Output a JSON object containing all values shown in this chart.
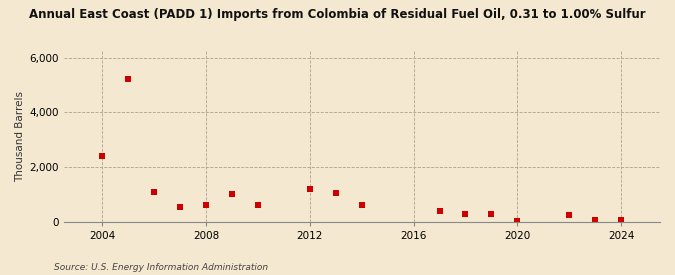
{
  "title": "Annual East Coast (PADD 1) Imports from Colombia of Residual Fuel Oil, 0.31 to 1.00% Sulfur",
  "ylabel": "Thousand Barrels",
  "source": "Source: U.S. Energy Information Administration",
  "background_color": "#f5e8d0",
  "marker_color": "#cc0000",
  "years": [
    2004,
    2005,
    2006,
    2007,
    2008,
    2009,
    2010,
    2012,
    2013,
    2014,
    2017,
    2018,
    2019,
    2020,
    2022,
    2023,
    2024
  ],
  "values": [
    2420,
    5200,
    1100,
    550,
    620,
    1000,
    620,
    1200,
    1050,
    620,
    400,
    300,
    265,
    12,
    230,
    70,
    55
  ],
  "ylim": [
    0,
    6250
  ],
  "yticks": [
    0,
    2000,
    4000,
    6000
  ],
  "xlim": [
    2002.5,
    2025.5
  ],
  "xticks": [
    2004,
    2008,
    2012,
    2016,
    2020,
    2024
  ],
  "grid_color": "#b0a090",
  "vgrid_ticks": [
    2004,
    2008,
    2012,
    2016,
    2020,
    2024
  ],
  "title_fontsize": 8.5,
  "tick_fontsize": 7.5,
  "ylabel_fontsize": 7.5,
  "source_fontsize": 6.5
}
